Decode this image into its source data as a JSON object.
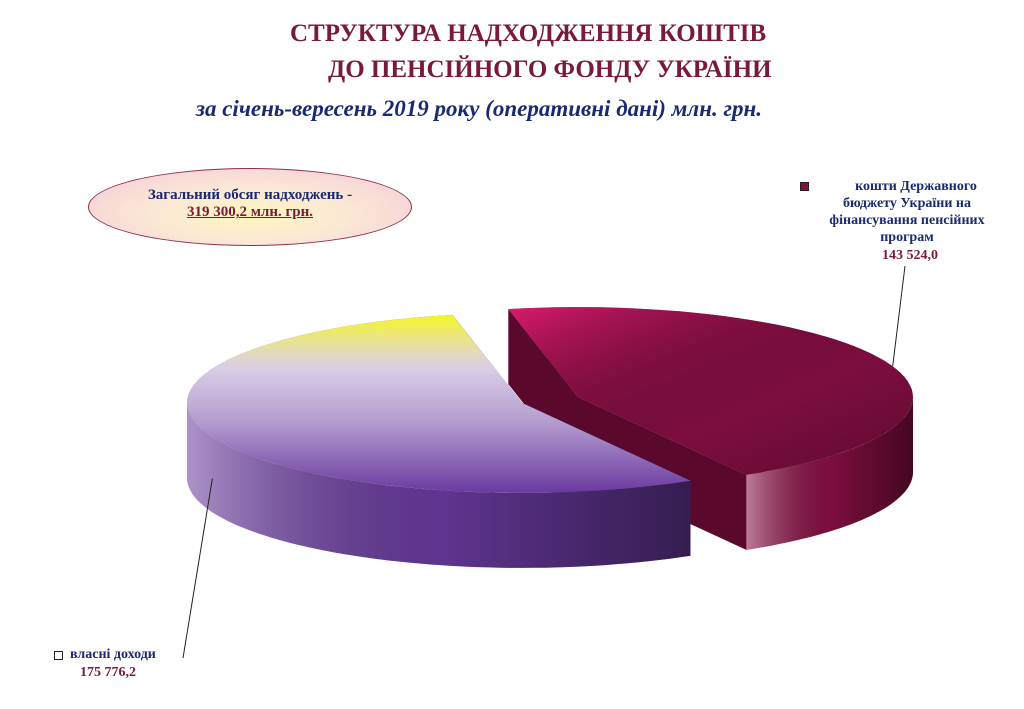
{
  "chart_data": {
    "type": "pie3d",
    "title": [
      "СТРУКТУРА  НАДХОДЖЕННЯ КОШТІВ",
      "ДО ПЕНСІЙНОГО ФОНДУ УКРАЇНИ"
    ],
    "subtitle": "за січень-вересень 2019 року (оперативні дані) млн. грн.",
    "annotation": [
      "Загальний обсяг надходжень -",
      "319 300,2 млн. грн."
    ],
    "categories": [
      "кошти Державного бюджету України на фінансування пенсійних програм",
      "власні доходи"
    ],
    "values": [
      143524.0,
      175776.2
    ],
    "value_labels": [
      "143 524,0",
      "175 776,2"
    ],
    "colors": [
      "#8a0f45",
      "#6a3aa0"
    ]
  }
}
